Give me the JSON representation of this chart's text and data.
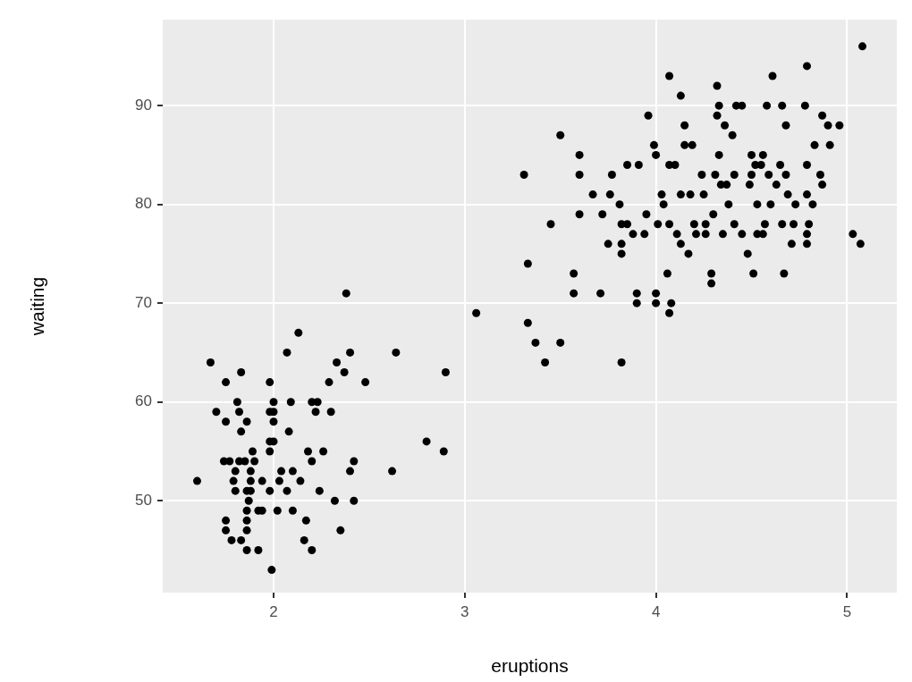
{
  "chart_data": {
    "type": "scatter",
    "xlabel": "eruptions",
    "ylabel": "waiting",
    "xlim": [
      1.42,
      5.26
    ],
    "ylim": [
      40.7,
      98.7
    ],
    "xticks": [
      2,
      3,
      4,
      5
    ],
    "yticks": [
      50,
      60,
      70,
      80,
      90
    ],
    "grid": true,
    "legend": false,
    "marker": "circle",
    "series": [
      {
        "color": "#000000",
        "x": [
          1.6,
          1.67,
          1.7,
          1.75,
          1.74,
          1.77,
          1.75,
          1.75,
          1.75,
          1.78,
          1.79,
          1.8,
          1.8,
          1.81,
          1.82,
          1.83,
          1.83,
          1.82,
          1.85,
          1.83,
          1.86,
          1.86,
          1.87,
          1.86,
          1.86,
          1.86,
          1.86,
          1.88,
          1.88,
          1.88,
          1.89,
          1.9,
          1.92,
          1.92,
          1.94,
          1.94,
          1.98,
          1.98,
          2.0,
          1.99,
          1.98,
          1.98,
          2.0,
          1.98,
          2.0,
          2.0,
          2.02,
          2.03,
          2.04,
          2.07,
          2.07,
          2.08,
          2.09,
          2.1,
          2.1,
          2.13,
          2.14,
          2.16,
          2.17,
          2.18,
          2.2,
          2.23,
          2.2,
          2.2,
          2.22,
          2.24,
          2.26,
          2.29,
          2.3,
          2.32,
          2.33,
          2.35,
          2.37,
          2.38,
          2.4,
          2.4,
          2.42,
          2.42,
          2.48,
          2.62,
          2.64,
          2.8,
          2.89,
          2.9,
          3.06,
          3.31,
          3.33,
          3.33,
          3.37,
          3.42,
          3.45,
          3.5,
          3.5,
          3.57,
          3.57,
          3.6,
          3.6,
          3.6,
          3.67,
          3.71,
          3.72,
          3.75,
          3.76,
          3.77,
          3.81,
          3.82,
          3.85,
          3.82,
          3.82,
          3.82,
          3.85,
          3.88,
          3.91,
          3.9,
          3.9,
          3.94,
          3.95,
          3.96,
          3.99,
          4.0,
          4.0,
          4.0,
          4.01,
          4.03,
          4.04,
          4.06,
          4.07,
          4.08,
          4.07,
          4.07,
          4.1,
          4.07,
          4.11,
          4.13,
          4.13,
          4.13,
          4.15,
          4.15,
          4.17,
          4.18,
          4.19,
          4.2,
          4.21,
          4.24,
          4.25,
          4.26,
          4.26,
          4.29,
          4.29,
          4.3,
          4.31,
          4.32,
          4.32,
          4.33,
          4.33,
          4.34,
          4.35,
          4.36,
          4.37,
          4.38,
          4.4,
          4.41,
          4.42,
          4.45,
          4.41,
          4.45,
          4.48,
          4.49,
          4.5,
          4.5,
          4.51,
          4.52,
          4.53,
          4.53,
          4.55,
          4.56,
          4.56,
          4.57,
          4.58,
          4.59,
          4.6,
          4.61,
          4.63,
          4.65,
          4.66,
          4.66,
          4.67,
          4.68,
          4.68,
          4.69,
          4.71,
          4.72,
          4.73,
          4.78,
          4.79,
          4.79,
          4.79,
          4.79,
          4.79,
          4.8,
          4.82,
          4.83,
          4.86,
          4.87,
          4.87,
          4.9,
          4.91,
          4.96,
          5.03,
          5.07,
          5.08
        ],
        "values": [
          52,
          64,
          59,
          62,
          54,
          54,
          58,
          48,
          47,
          46,
          52,
          53,
          51,
          60,
          59,
          57,
          63,
          54,
          54,
          46,
          58,
          51,
          50,
          49,
          48,
          47,
          45,
          53,
          52,
          51,
          55,
          54,
          45,
          49,
          49,
          52,
          62,
          59,
          59,
          43,
          51,
          56,
          56,
          55,
          60,
          58,
          49,
          52,
          53,
          51,
          65,
          57,
          60,
          53,
          49,
          67,
          52,
          46,
          48,
          55,
          60,
          60,
          45,
          54,
          59,
          51,
          55,
          62,
          59,
          50,
          64,
          47,
          63,
          71,
          65,
          53,
          54,
          50,
          62,
          53,
          65,
          56,
          55,
          63,
          69,
          83,
          74,
          68,
          66,
          64,
          78,
          87,
          66,
          73,
          71,
          85,
          83,
          79,
          81,
          71,
          79,
          76,
          81,
          83,
          80,
          78,
          78,
          76,
          75,
          64,
          84,
          77,
          84,
          71,
          70,
          77,
          79,
          89,
          86,
          71,
          70,
          85,
          78,
          81,
          80,
          73,
          69,
          70,
          93,
          84,
          84,
          78,
          77,
          81,
          91,
          76,
          88,
          86,
          75,
          81,
          86,
          78,
          77,
          83,
          81,
          78,
          77,
          73,
          72,
          79,
          83,
          92,
          89,
          90,
          85,
          82,
          77,
          88,
          82,
          80,
          87,
          78,
          90,
          90,
          83,
          77,
          75,
          82,
          85,
          83,
          73,
          84,
          80,
          77,
          84,
          85,
          77,
          78,
          90,
          83,
          80,
          93,
          82,
          84,
          90,
          78,
          73,
          88,
          83,
          81,
          76,
          78,
          80,
          90,
          94,
          84,
          81,
          77,
          76,
          78,
          80,
          86,
          83,
          89,
          82,
          88,
          86,
          88,
          77,
          76,
          96
        ]
      }
    ]
  }
}
